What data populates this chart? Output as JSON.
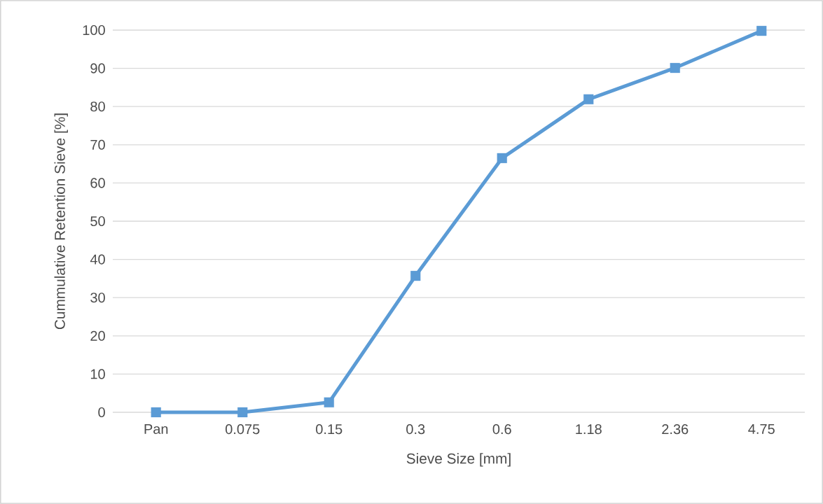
{
  "chart_data": {
    "type": "line",
    "xlabel": "Sieve Size [mm]",
    "ylabel": "Cummulative Retention Sieve [%]",
    "categories": [
      "Pan",
      "0.075",
      "0.15",
      "0.3",
      "0.6",
      "1.18",
      "2.36",
      "4.75"
    ],
    "series": [
      {
        "color": "#5b9bd5",
        "values": [
          0,
          0,
          2.6,
          35.7,
          66.5,
          81.9,
          90.1,
          99.8
        ]
      }
    ],
    "ylim": [
      0,
      100
    ],
    "yticks": [
      0,
      10,
      20,
      30,
      40,
      50,
      60,
      70,
      80,
      90,
      100
    ],
    "grid": "y",
    "marker": "square",
    "line_style": "solid"
  }
}
